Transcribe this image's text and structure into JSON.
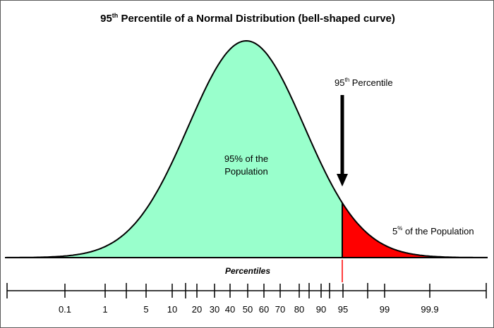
{
  "title": {
    "prefix": "95",
    "sup": "th",
    "rest": " Percentile of a Normal Distribution (bell-shaped curve)"
  },
  "annotations": {
    "percentile_label": {
      "prefix": "95",
      "sup": "th",
      "rest": " Percentile"
    },
    "left_area_line1": "95% of the",
    "left_area_line2": "Population",
    "right_area": {
      "prefix": "5",
      "sup": "%",
      "rest": " of the Population"
    }
  },
  "colors": {
    "left_fill": "#99ffcc",
    "right_fill": "#ff0000",
    "curve": "#000000",
    "marker": "#ff0000"
  },
  "axis": {
    "title": "Percentiles",
    "percentile_labels": [
      "0.1",
      "1",
      "5",
      "10",
      "20",
      "30",
      "40",
      "50",
      "60",
      "70",
      "80",
      "90",
      "95",
      "99",
      "99.9"
    ],
    "highlighted_percentile": 95
  }
}
